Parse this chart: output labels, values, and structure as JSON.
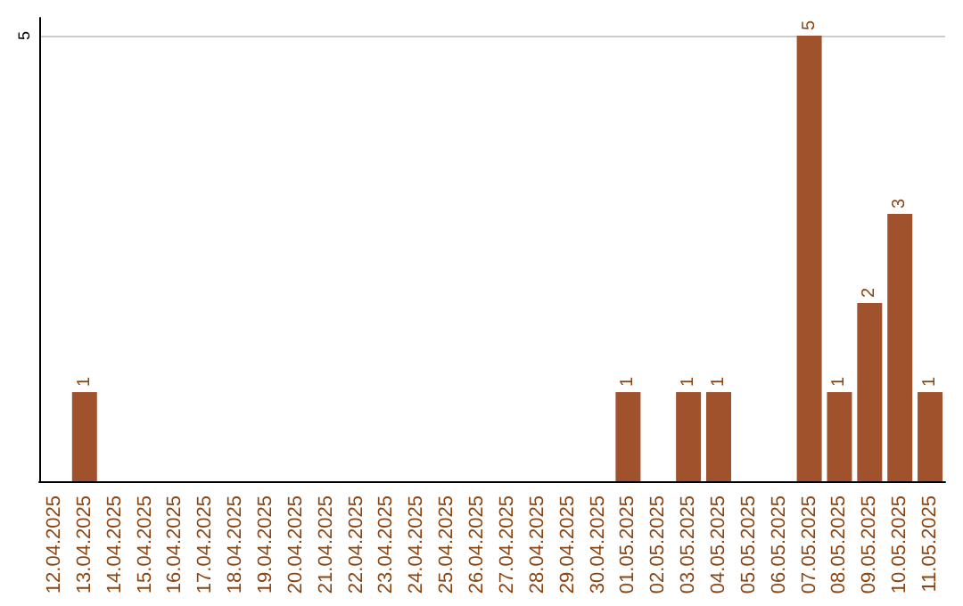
{
  "chart_data": {
    "type": "bar",
    "categories": [
      "12.04.2025",
      "13.04.2025",
      "14.04.2025",
      "15.04.2025",
      "16.04.2025",
      "17.04.2025",
      "18.04.2025",
      "19.04.2025",
      "20.04.2025",
      "21.04.2025",
      "22.04.2025",
      "23.04.2025",
      "24.04.2025",
      "25.04.2025",
      "26.04.2025",
      "27.04.2025",
      "28.04.2025",
      "29.04.2025",
      "30.04.2025",
      "01.05.2025",
      "02.05.2025",
      "03.05.2025",
      "04.05.2025",
      "05.05.2025",
      "06.05.2025",
      "07.05.2025",
      "08.05.2025",
      "09.05.2025",
      "10.05.2025",
      "11.05.2025"
    ],
    "values": [
      null,
      1,
      null,
      null,
      null,
      null,
      null,
      null,
      null,
      null,
      null,
      null,
      null,
      null,
      null,
      null,
      null,
      null,
      null,
      1,
      null,
      1,
      1,
      null,
      null,
      5,
      1,
      2,
      3,
      1
    ],
    "color": "#a0522d",
    "ylim": [
      0,
      5.2
    ],
    "yticks": [
      5
    ],
    "grid": "y",
    "data_labels": true
  }
}
